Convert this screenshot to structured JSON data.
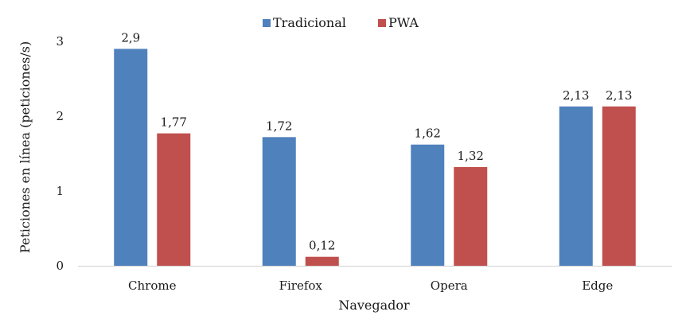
{
  "chart_data": {
    "type": "bar",
    "title": "",
    "xlabel": "Navegador",
    "ylabel": "Peticiones en línea (peticiones/s)",
    "categories": [
      "Chrome",
      "Firefox",
      "Opera",
      "Edge"
    ],
    "series": [
      {
        "name": "Tradicional",
        "color": "#4F81BD",
        "values": [
          2.9,
          1.72,
          1.62,
          2.13
        ],
        "labels": [
          "2,9",
          "1,72",
          "1,62",
          "2,13"
        ]
      },
      {
        "name": "PWA",
        "color": "#C0504D",
        "values": [
          1.77,
          0.12,
          1.32,
          2.13
        ],
        "labels": [
          "1,77",
          "0,12",
          "1,32",
          "2,13"
        ]
      }
    ],
    "ylim": [
      0,
      3
    ],
    "yticks": [
      0,
      1,
      2,
      3
    ],
    "ytick_labels": [
      "0",
      "1",
      "2",
      "3"
    ],
    "grid": false,
    "legend": "top-center"
  }
}
